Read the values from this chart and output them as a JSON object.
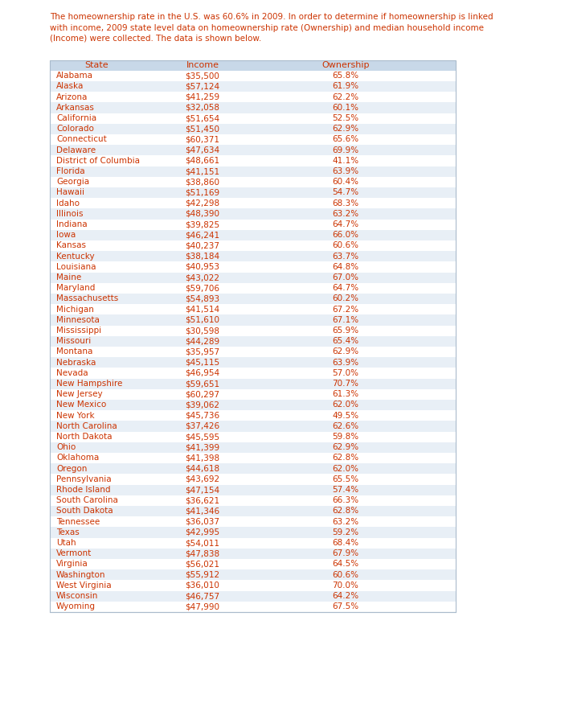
{
  "intro_text_lines": [
    "The homeownership rate in the U.S. was 60.6% in 2009. In order to determine if homeownership is linked",
    "with income, 2009 state level data on homeownership rate (Ownership) and median household income",
    "(Income) were collected. The data is shown below."
  ],
  "headers": [
    "State",
    "Income",
    "Ownership"
  ],
  "states": [
    "Alabama",
    "Alaska",
    "Arizona",
    "Arkansas",
    "California",
    "Colorado",
    "Connecticut",
    "Delaware",
    "District of Columbia",
    "Florida",
    "Georgia",
    "Hawaii",
    "Idaho",
    "Illinois",
    "Indiana",
    "Iowa",
    "Kansas",
    "Kentucky",
    "Louisiana",
    "Maine",
    "Maryland",
    "Massachusetts",
    "Michigan",
    "Minnesota",
    "Mississippi",
    "Missouri",
    "Montana",
    "Nebraska",
    "Nevada",
    "New Hampshire",
    "New Jersey",
    "New Mexico",
    "New York",
    "North Carolina",
    "North Dakota",
    "Ohio",
    "Oklahoma",
    "Oregon",
    "Pennsylvania",
    "Rhode Island",
    "South Carolina",
    "South Dakota",
    "Tennessee",
    "Texas",
    "Utah",
    "Vermont",
    "Virginia",
    "Washington",
    "West Virginia",
    "Wisconsin",
    "Wyoming"
  ],
  "income": [
    "$35,500",
    "$57,124",
    "$41,259",
    "$32,058",
    "$51,654",
    "$51,450",
    "$60,371",
    "$47,634",
    "$48,661",
    "$41,151",
    "$38,860",
    "$51,169",
    "$42,298",
    "$48,390",
    "$39,825",
    "$46,241",
    "$40,237",
    "$38,184",
    "$40,953",
    "$43,022",
    "$59,706",
    "$54,893",
    "$41,514",
    "$51,610",
    "$30,598",
    "$44,289",
    "$35,957",
    "$45,115",
    "$46,954",
    "$59,651",
    "$60,297",
    "$39,062",
    "$45,736",
    "$37,426",
    "$45,595",
    "$41,399",
    "$41,398",
    "$44,618",
    "$43,692",
    "$47,154",
    "$36,621",
    "$41,346",
    "$36,037",
    "$42,995",
    "$54,011",
    "$47,838",
    "$56,021",
    "$55,912",
    "$36,010",
    "$46,757",
    "$47,990"
  ],
  "ownership": [
    "65.8%",
    "61.9%",
    "62.2%",
    "60.1%",
    "52.5%",
    "62.9%",
    "65.6%",
    "69.9%",
    "41.1%",
    "63.9%",
    "60.4%",
    "54.7%",
    "68.3%",
    "63.2%",
    "64.7%",
    "66.0%",
    "60.6%",
    "63.7%",
    "64.8%",
    "67.0%",
    "64.7%",
    "60.2%",
    "67.2%",
    "67.1%",
    "65.9%",
    "65.4%",
    "62.9%",
    "63.9%",
    "57.0%",
    "70.7%",
    "61.3%",
    "62.0%",
    "49.5%",
    "62.6%",
    "59.8%",
    "62.9%",
    "62.8%",
    "62.0%",
    "65.5%",
    "57.4%",
    "66.3%",
    "62.8%",
    "63.2%",
    "59.2%",
    "68.4%",
    "67.9%",
    "64.5%",
    "60.6%",
    "70.0%",
    "64.2%",
    "67.5%"
  ],
  "text_color": "#CC3300",
  "header_bg": "#C8D8E8",
  "row_bg_even": "#E8EFF6",
  "row_bg_odd": "#FFFFFF",
  "table_border_color": "#AABBCC",
  "font_size": 7.5,
  "header_font_size": 8.0
}
